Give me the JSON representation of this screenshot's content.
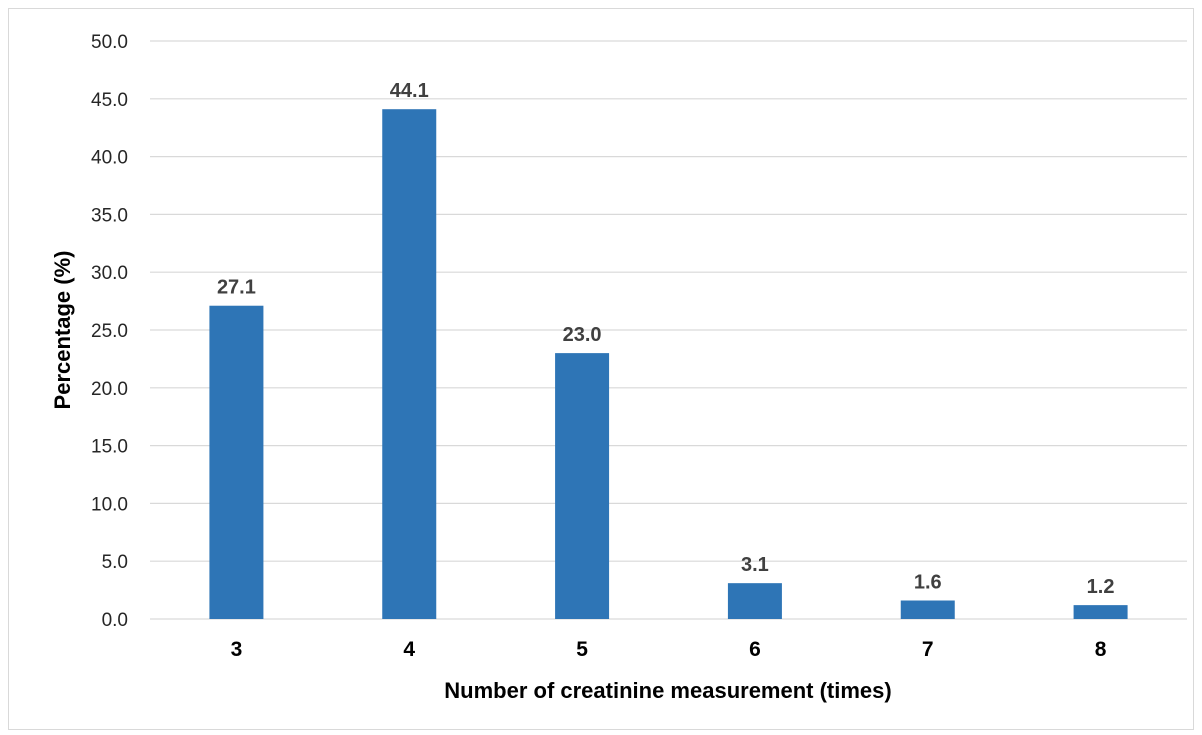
{
  "chart_data": {
    "type": "bar",
    "title": "",
    "xlabel": "Number of  creatinine measurement (times)",
    "ylabel": "Percentage (%)",
    "categories": [
      "3",
      "4",
      "5",
      "6",
      "7",
      "8"
    ],
    "values": [
      27.1,
      44.1,
      23.0,
      3.1,
      1.6,
      1.2
    ],
    "data_labels": [
      "27.1",
      "44.1",
      "23.0",
      "3.1",
      "1.6",
      "1.2"
    ],
    "ylim": [
      0,
      50
    ],
    "yticks": [
      "0.0",
      "5.0",
      "10.0",
      "15.0",
      "20.0",
      "25.0",
      "30.0",
      "35.0",
      "40.0",
      "45.0",
      "50.0"
    ],
    "grid": true,
    "legend": "none",
    "colors": {
      "bar": "#2e75b6",
      "grid": "#d9d9d9",
      "data_label": "#404040"
    }
  }
}
